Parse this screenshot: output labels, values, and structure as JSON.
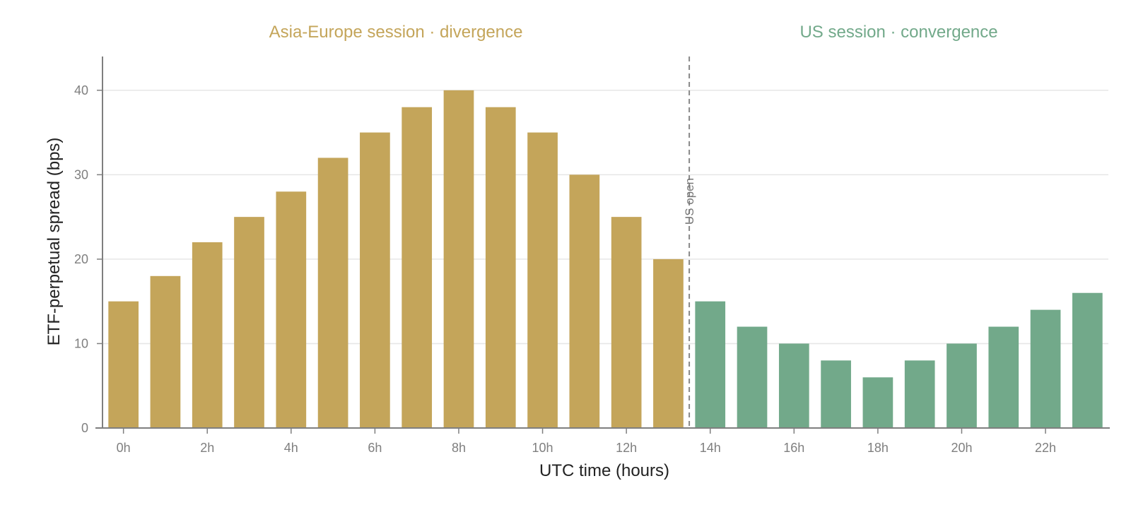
{
  "chart_data": {
    "type": "bar",
    "xlabel": "UTC time (hours)",
    "ylabel": "ETF-perpetual spread (bps)",
    "ylim": [
      0,
      44
    ],
    "yticks": [
      0,
      10,
      20,
      30,
      40
    ],
    "grid": "horizontal",
    "categories": [
      "0h",
      "1h",
      "2h",
      "3h",
      "4h",
      "5h",
      "6h",
      "7h",
      "8h",
      "9h",
      "10h",
      "11h",
      "12h",
      "13h",
      "14h",
      "15h",
      "16h",
      "17h",
      "18h",
      "19h",
      "20h",
      "21h",
      "22h",
      "23h"
    ],
    "x_tick_labels": [
      "0h",
      "2h",
      "4h",
      "6h",
      "8h",
      "10h",
      "12h",
      "14h",
      "16h",
      "18h",
      "20h",
      "22h"
    ],
    "values": [
      15,
      18,
      22,
      25,
      28,
      32,
      35,
      38,
      40,
      38,
      35,
      30,
      25,
      20,
      15,
      12,
      10,
      8,
      6,
      8,
      10,
      12,
      14,
      16
    ],
    "sessions": [
      {
        "label": "Asia-Europe session · divergence",
        "start_index": 0,
        "end_index": 13,
        "color": "#C4A55A"
      },
      {
        "label": "US session · convergence",
        "start_index": 14,
        "end_index": 23,
        "color": "#72A98A"
      }
    ],
    "vline": {
      "label": "US open",
      "between_indices": [
        13,
        14
      ],
      "color": "#888888"
    },
    "colors": {
      "axis": "#7f7f7f",
      "grid": "#e6e6e6",
      "tick_text": "#7f7f7f",
      "label_text": "#222222"
    }
  }
}
